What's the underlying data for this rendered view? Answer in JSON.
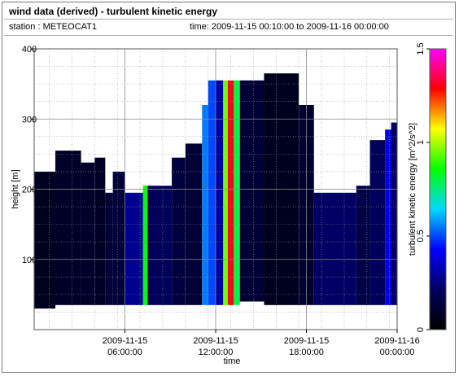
{
  "header": {
    "title": "wind data (derived) - turbulent kinetic energy",
    "station": "station : METEOCAT1",
    "time_range": "time: 2009-11-15 00:10:00 to 2009-11-16 00:00:00"
  },
  "chart_data": {
    "type": "heatmap",
    "title": "wind data (derived) - turbulent kinetic energy",
    "xlabel": "time",
    "ylabel": "height [m]",
    "x_ticks": [
      {
        "h": 6,
        "line1": "2009-11-15",
        "line2": "06:00:00"
      },
      {
        "h": 12,
        "line1": "2009-11-15",
        "line2": "12:00:00"
      },
      {
        "h": 18,
        "line1": "2009-11-15",
        "line2": "18:00:00"
      },
      {
        "h": 24,
        "line1": "2009-11-16",
        "line2": "00:00:00"
      }
    ],
    "xlim_hours": [
      0,
      24
    ],
    "y_ticks": [
      100,
      200,
      300,
      400
    ],
    "ylim": [
      0,
      400
    ],
    "grid": true,
    "colorbar": {
      "label": "turbulent kinetic energy [m^2/s^2]",
      "range": [
        0,
        1.5
      ],
      "ticks": [
        "0",
        "0.5",
        "1",
        "1.5"
      ],
      "stops": [
        "#000000",
        "#000060",
        "#0000ff",
        "#00d8ff",
        "#00ff00",
        "#ffff00",
        "#ff0000",
        "#ff00ff"
      ]
    },
    "columns": [
      {
        "t0": 0.0,
        "t1": 1.4,
        "top": 225,
        "bottom": 30,
        "tke": 0.07
      },
      {
        "t0": 1.4,
        "t1": 3.1,
        "top": 255,
        "bottom": 35,
        "tke": 0.09
      },
      {
        "t0": 3.1,
        "t1": 4.0,
        "top": 238,
        "bottom": 35,
        "tke": 0.1
      },
      {
        "t0": 4.0,
        "t1": 4.7,
        "top": 245,
        "bottom": 35,
        "tke": 0.08
      },
      {
        "t0": 4.7,
        "t1": 5.2,
        "top": 195,
        "bottom": 35,
        "tke": 0.12
      },
      {
        "t0": 5.2,
        "t1": 6.0,
        "top": 225,
        "bottom": 35,
        "tke": 0.13
      },
      {
        "t0": 6.0,
        "t1": 7.2,
        "top": 195,
        "bottom": 35,
        "tke": 0.28
      },
      {
        "t0": 7.2,
        "t1": 7.5,
        "top": 205,
        "bottom": 35,
        "tke": 0.85
      },
      {
        "t0": 7.5,
        "t1": 9.1,
        "top": 205,
        "bottom": 35,
        "tke": 0.2
      },
      {
        "t0": 9.1,
        "t1": 10.0,
        "top": 245,
        "bottom": 35,
        "tke": 0.14
      },
      {
        "t0": 10.0,
        "t1": 11.1,
        "top": 265,
        "bottom": 35,
        "tke": 0.12
      },
      {
        "t0": 11.1,
        "t1": 11.5,
        "top": 320,
        "bottom": 35,
        "tke": 0.55
      },
      {
        "t0": 11.5,
        "t1": 12.0,
        "top": 355,
        "bottom": 35,
        "tke": 0.5
      },
      {
        "t0": 12.0,
        "t1": 12.5,
        "top": 355,
        "bottom": 35,
        "tke": 0.3
      },
      {
        "t0": 12.5,
        "t1": 12.8,
        "top": 355,
        "bottom": 35,
        "tke": 0.95
      },
      {
        "t0": 12.8,
        "t1": 13.2,
        "top": 355,
        "bottom": 35,
        "tke": 1.3
      },
      {
        "t0": 13.2,
        "t1": 13.6,
        "top": 355,
        "bottom": 35,
        "tke": 0.8
      },
      {
        "t0": 13.6,
        "t1": 15.2,
        "top": 355,
        "bottom": 40,
        "tke": 0.12
      },
      {
        "t0": 15.2,
        "t1": 17.5,
        "top": 365,
        "bottom": 35,
        "tke": 0.07
      },
      {
        "t0": 17.5,
        "t1": 18.5,
        "top": 320,
        "bottom": 35,
        "tke": 0.1
      },
      {
        "t0": 18.5,
        "t1": 21.3,
        "top": 195,
        "bottom": 35,
        "tke": 0.22
      },
      {
        "t0": 21.3,
        "t1": 22.2,
        "top": 205,
        "bottom": 35,
        "tke": 0.16
      },
      {
        "t0": 22.2,
        "t1": 23.2,
        "top": 270,
        "bottom": 35,
        "tke": 0.2
      },
      {
        "t0": 23.2,
        "t1": 23.6,
        "top": 285,
        "bottom": 35,
        "tke": 0.4
      },
      {
        "t0": 23.6,
        "t1": 24.0,
        "top": 295,
        "bottom": 35,
        "tke": 0.22
      }
    ]
  }
}
